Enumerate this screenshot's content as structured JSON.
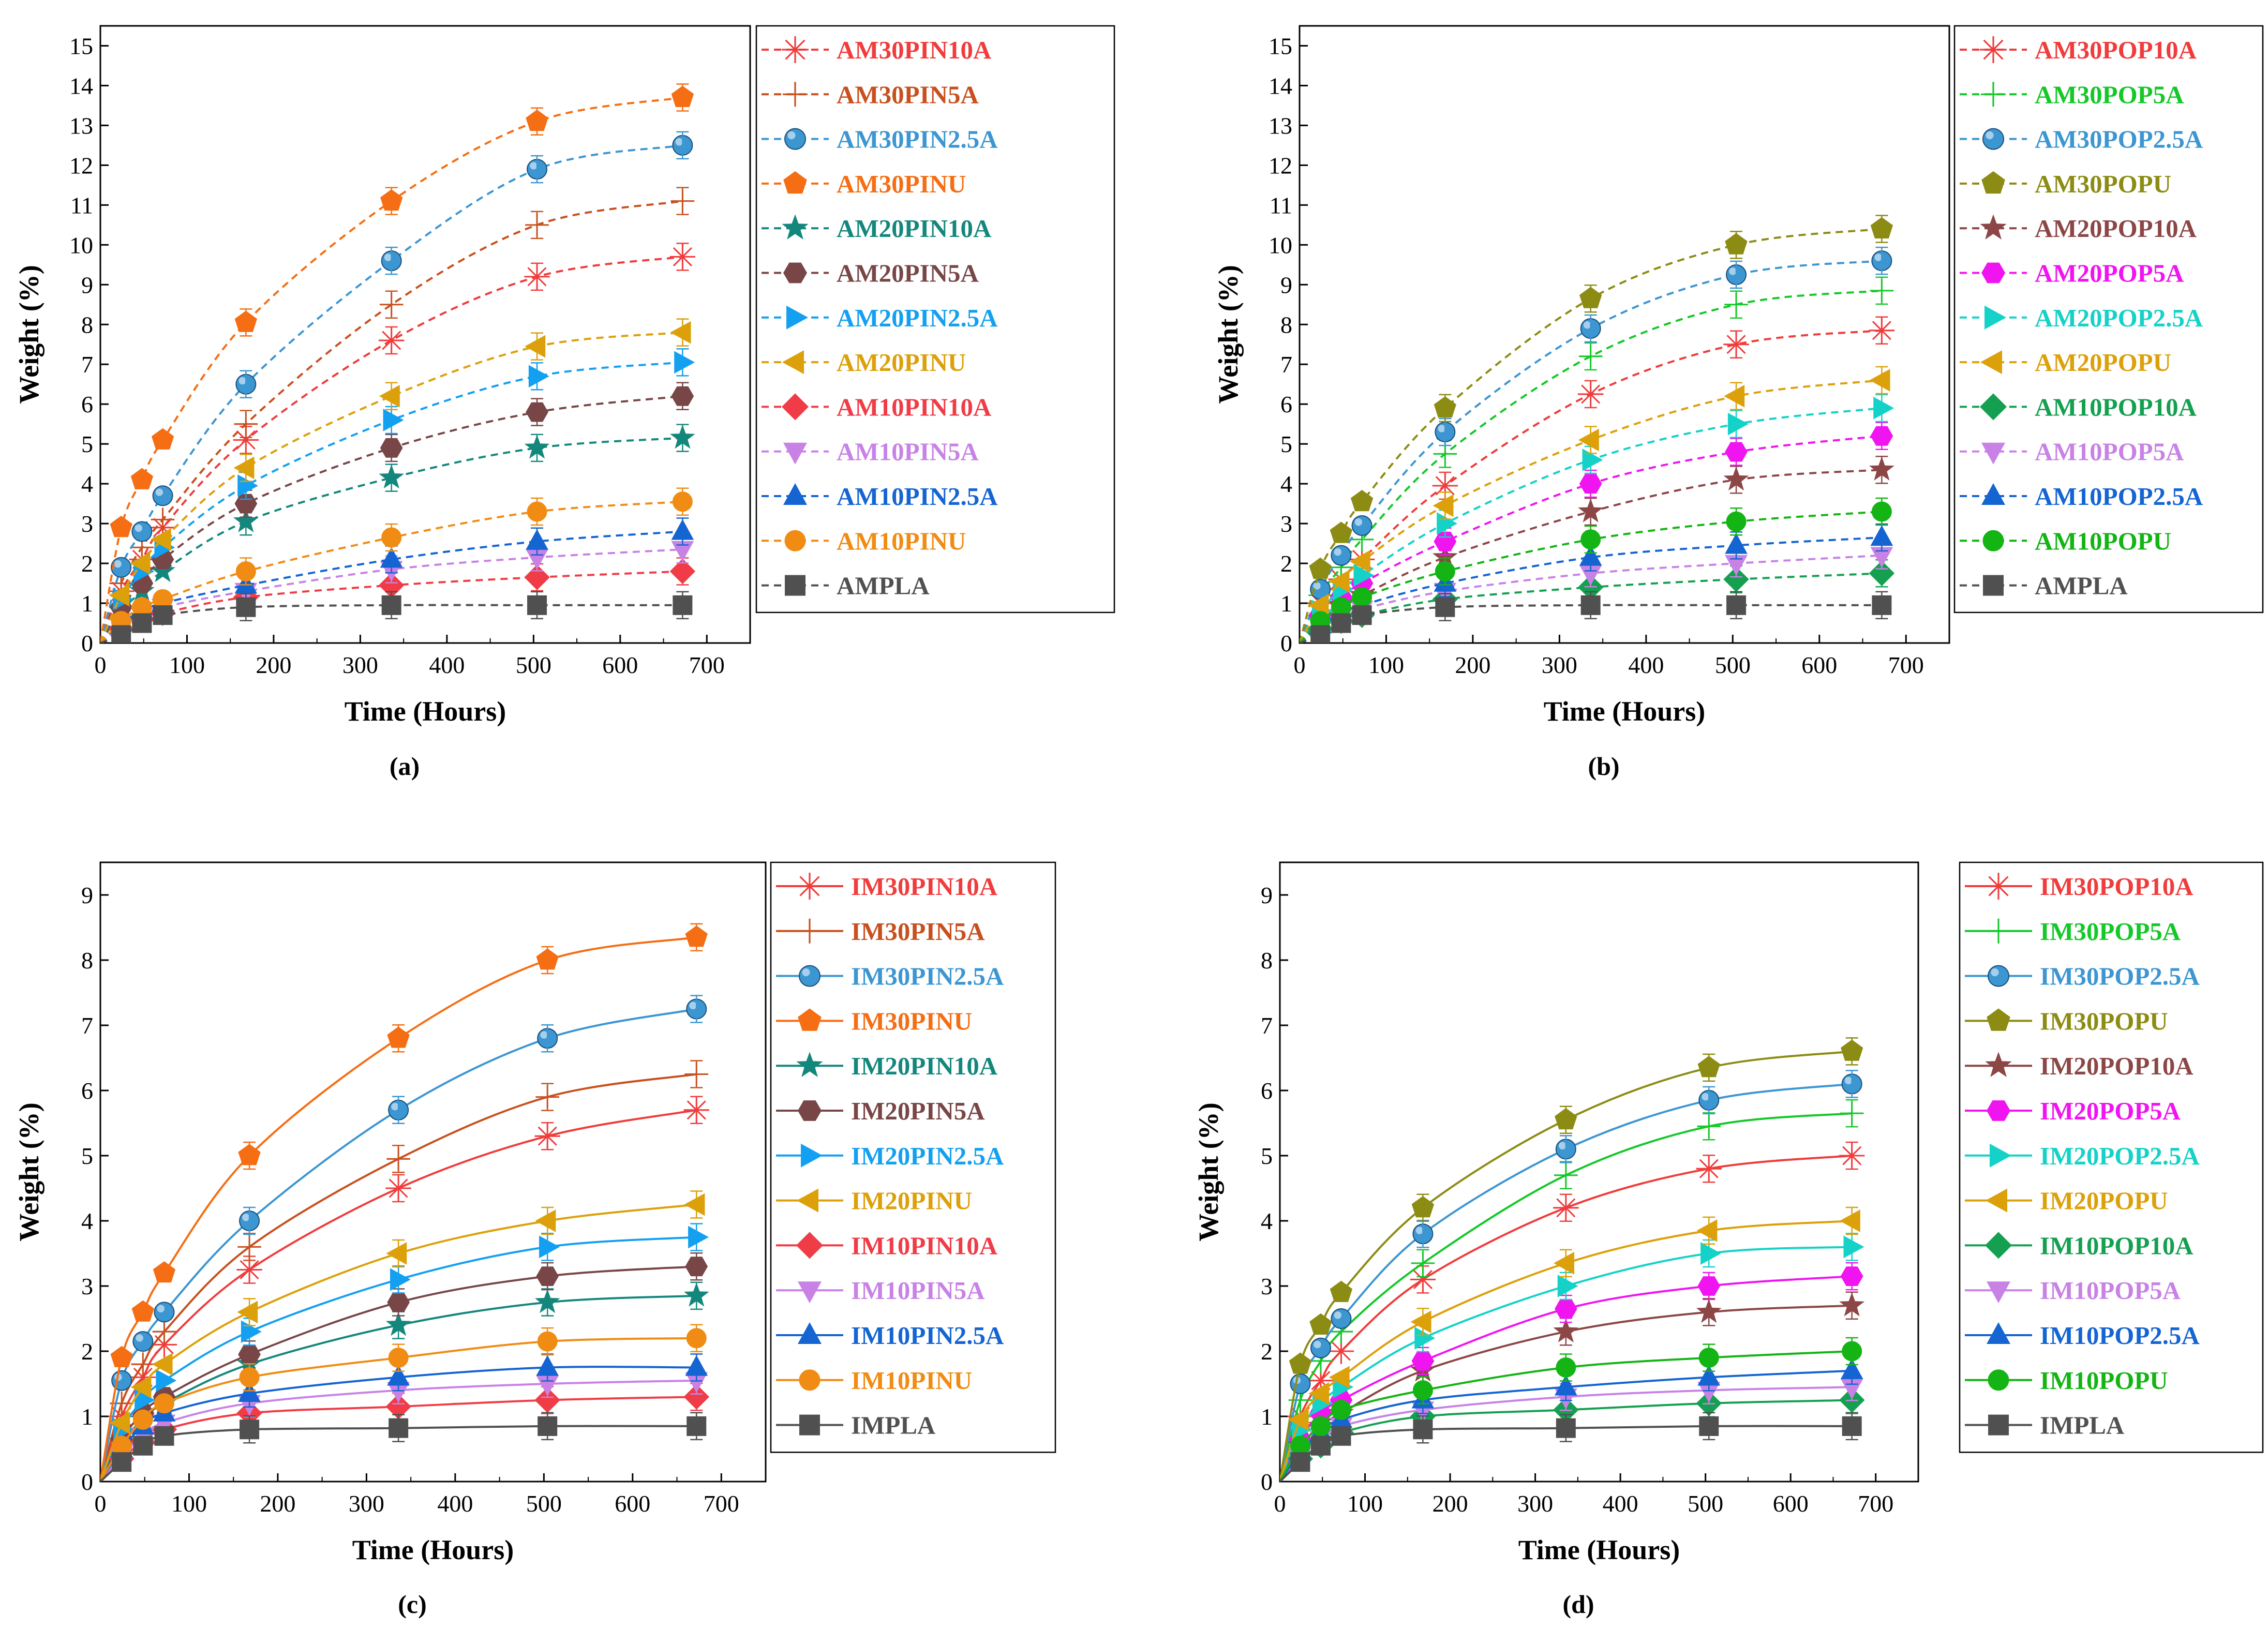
{
  "chart_data": [
    {
      "type": "line",
      "panel_label": "(a)",
      "xlabel": "Time (Hours)",
      "ylabel": "Weight (%)",
      "xlim": [
        0,
        750
      ],
      "ylim": [
        0,
        15.5
      ],
      "x_ticks": [
        0,
        100,
        200,
        300,
        400,
        500,
        600,
        700
      ],
      "y_ticks": [
        0,
        1,
        2,
        3,
        4,
        5,
        6,
        7,
        8,
        9,
        10,
        11,
        12,
        13,
        14,
        15
      ],
      "line_style": "dashed",
      "x": [
        0,
        24,
        48,
        72,
        168,
        336,
        504,
        672
      ],
      "series": [
        {
          "name": "AM30PIN10A",
          "color": "#f03c3c",
          "marker": "asterisk",
          "values": [
            0,
            1.3,
            2.1,
            2.9,
            5.1,
            7.6,
            9.2,
            9.7
          ]
        },
        {
          "name": "AM30PIN5A",
          "color": "#c8501e",
          "marker": "plus",
          "values": [
            0,
            1.5,
            2.4,
            3.1,
            5.5,
            8.5,
            10.5,
            11.1
          ]
        },
        {
          "name": "AM30PIN2.5A",
          "color": "#3c96d2",
          "marker": "sphere",
          "values": [
            0,
            1.9,
            2.8,
            3.7,
            6.5,
            9.6,
            11.9,
            12.5
          ]
        },
        {
          "name": "AM30PINU",
          "color": "#f56e14",
          "marker": "pentagon",
          "values": [
            0,
            2.9,
            4.1,
            5.1,
            8.05,
            11.1,
            13.1,
            13.7
          ]
        },
        {
          "name": "AM20PIN10A",
          "color": "#14877d",
          "marker": "star",
          "values": [
            0,
            0.8,
            1.3,
            1.8,
            3.05,
            4.15,
            4.9,
            5.15
          ]
        },
        {
          "name": "AM20PIN5A",
          "color": "#784646",
          "marker": "hexagon",
          "values": [
            0,
            0.9,
            1.5,
            2.1,
            3.5,
            4.9,
            5.8,
            6.2
          ]
        },
        {
          "name": "AM20PIN2.5A",
          "color": "#14a0f0",
          "marker": "triangle-right",
          "values": [
            0,
            1.1,
            1.8,
            2.4,
            3.95,
            5.6,
            6.7,
            7.05
          ]
        },
        {
          "name": "AM20PINU",
          "color": "#dca00a",
          "marker": "triangle-left",
          "values": [
            0,
            1.2,
            2.0,
            2.6,
            4.4,
            6.2,
            7.45,
            7.8
          ]
        },
        {
          "name": "AM10PIN10A",
          "color": "#f03c46",
          "marker": "diamond",
          "values": [
            0,
            0.35,
            0.6,
            0.75,
            1.15,
            1.45,
            1.65,
            1.8
          ]
        },
        {
          "name": "AM10PIN5A",
          "color": "#c882e6",
          "marker": "triangle-down",
          "values": [
            0,
            0.4,
            0.7,
            0.9,
            1.3,
            1.85,
            2.15,
            2.35
          ]
        },
        {
          "name": "AM10PIN2.5A",
          "color": "#1464d2",
          "marker": "triangle-up",
          "values": [
            0,
            0.5,
            0.8,
            1.0,
            1.45,
            2.1,
            2.55,
            2.8
          ]
        },
        {
          "name": "AM10PINU",
          "color": "#f08c14",
          "marker": "circle",
          "values": [
            0,
            0.55,
            0.9,
            1.1,
            1.8,
            2.65,
            3.3,
            3.55
          ]
        },
        {
          "name": "AMPLA",
          "color": "#505050",
          "marker": "square",
          "values": [
            0,
            0.2,
            0.5,
            0.7,
            0.9,
            0.95,
            0.95,
            0.95
          ]
        }
      ]
    },
    {
      "type": "line",
      "panel_label": "(b)",
      "xlabel": "Time (Hours)",
      "ylabel": "Weight (%)",
      "xlim": [
        0,
        750
      ],
      "ylim": [
        0,
        15.5
      ],
      "x_ticks": [
        0,
        100,
        200,
        300,
        400,
        500,
        600,
        700
      ],
      "y_ticks": [
        0,
        1,
        2,
        3,
        4,
        5,
        6,
        7,
        8,
        9,
        10,
        11,
        12,
        13,
        14,
        15
      ],
      "line_style": "dashed",
      "x": [
        0,
        24,
        48,
        72,
        168,
        336,
        504,
        672
      ],
      "series": [
        {
          "name": "AM30POP10A",
          "color": "#f03c3c",
          "marker": "asterisk",
          "values": [
            0,
            1.0,
            1.6,
            2.1,
            3.95,
            6.25,
            7.5,
            7.85
          ]
        },
        {
          "name": "AM30POP5A",
          "color": "#14c828",
          "marker": "plus",
          "values": [
            0,
            1.2,
            1.9,
            2.6,
            4.75,
            7.2,
            8.5,
            8.85
          ]
        },
        {
          "name": "AM30POP2.5A",
          "color": "#3c96d2",
          "marker": "sphere",
          "values": [
            0,
            1.35,
            2.2,
            2.95,
            5.3,
            7.9,
            9.25,
            9.6
          ]
        },
        {
          "name": "AM30POPU",
          "color": "#8c8c14",
          "marker": "pentagon",
          "values": [
            0,
            1.85,
            2.75,
            3.55,
            5.9,
            8.65,
            10.0,
            10.4
          ]
        },
        {
          "name": "AM20POP10A",
          "color": "#8c4646",
          "marker": "star",
          "values": [
            0,
            0.6,
            0.95,
            1.2,
            2.15,
            3.3,
            4.1,
            4.35
          ]
        },
        {
          "name": "AM20POP5A",
          "color": "#f014f0",
          "marker": "hexagon",
          "values": [
            0,
            0.7,
            1.15,
            1.5,
            2.55,
            4.0,
            4.8,
            5.2
          ]
        },
        {
          "name": "AM20POP2.5A",
          "color": "#14d2c8",
          "marker": "triangle-right",
          "values": [
            0,
            0.8,
            1.35,
            1.7,
            3.0,
            4.6,
            5.5,
            5.9
          ]
        },
        {
          "name": "AM20POPU",
          "color": "#dca00a",
          "marker": "triangle-left",
          "values": [
            0,
            0.95,
            1.55,
            2.05,
            3.45,
            5.1,
            6.2,
            6.6
          ]
        },
        {
          "name": "AM10POP10A",
          "color": "#14a050",
          "marker": "diamond",
          "values": [
            0,
            0.35,
            0.55,
            0.7,
            1.1,
            1.4,
            1.6,
            1.75
          ]
        },
        {
          "name": "AM10POP5A",
          "color": "#c882e6",
          "marker": "triangle-down",
          "values": [
            0,
            0.4,
            0.65,
            0.85,
            1.3,
            1.75,
            2.0,
            2.2
          ]
        },
        {
          "name": "AM10POP2.5A",
          "color": "#1464d2",
          "marker": "triangle-up",
          "values": [
            0,
            0.45,
            0.75,
            0.95,
            1.5,
            2.15,
            2.45,
            2.65
          ]
        },
        {
          "name": "AM10POPU",
          "color": "#14b414",
          "marker": "circle",
          "values": [
            0,
            0.55,
            0.9,
            1.15,
            1.8,
            2.6,
            3.05,
            3.3
          ]
        },
        {
          "name": "AMPLA",
          "color": "#505050",
          "marker": "square",
          "values": [
            0,
            0.2,
            0.5,
            0.7,
            0.9,
            0.95,
            0.95,
            0.95
          ]
        }
      ]
    },
    {
      "type": "line",
      "panel_label": "(c)",
      "xlabel": "Time (Hours)",
      "ylabel": "Weight (%)",
      "xlim": [
        0,
        750
      ],
      "ylim": [
        0,
        9.5
      ],
      "x_ticks": [
        0,
        100,
        200,
        300,
        400,
        500,
        600,
        700
      ],
      "y_ticks": [
        0,
        1,
        2,
        3,
        4,
        5,
        6,
        7,
        8,
        9
      ],
      "line_style": "solid",
      "x": [
        0,
        24,
        48,
        72,
        168,
        336,
        504,
        672
      ],
      "series": [
        {
          "name": "IM30PIN10A",
          "color": "#f03c3c",
          "marker": "asterisk",
          "values": [
            0,
            1.0,
            1.6,
            2.1,
            3.25,
            4.5,
            5.3,
            5.7
          ]
        },
        {
          "name": "IM30PIN5A",
          "color": "#c8501e",
          "marker": "plus",
          "values": [
            0,
            1.2,
            1.8,
            2.3,
            3.6,
            4.95,
            5.9,
            6.25
          ]
        },
        {
          "name": "IM30PIN2.5A",
          "color": "#3c96d2",
          "marker": "sphere",
          "values": [
            0,
            1.55,
            2.15,
            2.6,
            4.0,
            5.7,
            6.8,
            7.25
          ]
        },
        {
          "name": "IM30PINU",
          "color": "#f56e14",
          "marker": "pentagon",
          "values": [
            0,
            1.9,
            2.6,
            3.2,
            5.0,
            6.8,
            8.0,
            8.35
          ]
        },
        {
          "name": "IM20PIN10A",
          "color": "#14877d",
          "marker": "star",
          "values": [
            0,
            0.6,
            0.95,
            1.2,
            1.8,
            2.4,
            2.75,
            2.85
          ]
        },
        {
          "name": "IM20PIN5A",
          "color": "#784646",
          "marker": "hexagon",
          "values": [
            0,
            0.65,
            1.05,
            1.3,
            1.95,
            2.75,
            3.15,
            3.3
          ]
        },
        {
          "name": "IM20PIN2.5A",
          "color": "#14a0f0",
          "marker": "triangle-right",
          "values": [
            0,
            0.8,
            1.25,
            1.55,
            2.3,
            3.1,
            3.6,
            3.75
          ]
        },
        {
          "name": "IM20PINU",
          "color": "#dca00a",
          "marker": "triangle-left",
          "values": [
            0,
            0.9,
            1.45,
            1.8,
            2.6,
            3.5,
            4.0,
            4.25
          ]
        },
        {
          "name": "IM10PIN10A",
          "color": "#f03c46",
          "marker": "diamond",
          "values": [
            0,
            0.35,
            0.6,
            0.8,
            1.05,
            1.15,
            1.25,
            1.3
          ]
        },
        {
          "name": "IM10PIN5A",
          "color": "#c882e6",
          "marker": "triangle-down",
          "values": [
            0,
            0.4,
            0.7,
            0.9,
            1.2,
            1.4,
            1.5,
            1.55
          ]
        },
        {
          "name": "IM10PIN2.5A",
          "color": "#1464d2",
          "marker": "triangle-up",
          "values": [
            0,
            0.5,
            0.85,
            1.05,
            1.35,
            1.6,
            1.75,
            1.75
          ]
        },
        {
          "name": "IM10PINU",
          "color": "#f08c14",
          "marker": "circle",
          "values": [
            0,
            0.55,
            0.95,
            1.2,
            1.6,
            1.9,
            2.15,
            2.2
          ]
        },
        {
          "name": "IMPLA",
          "color": "#505050",
          "marker": "square",
          "values": [
            0,
            0.3,
            0.55,
            0.7,
            0.8,
            0.82,
            0.85,
            0.85
          ]
        }
      ]
    },
    {
      "type": "line",
      "panel_label": "(d)",
      "xlabel": "Time (Hours)",
      "ylabel": "Weight (%)",
      "xlim": [
        0,
        750
      ],
      "ylim": [
        0,
        9.5
      ],
      "x_ticks": [
        0,
        100,
        200,
        300,
        400,
        500,
        600,
        700
      ],
      "y_ticks": [
        0,
        1,
        2,
        3,
        4,
        5,
        6,
        7,
        8,
        9
      ],
      "line_style": "solid",
      "x": [
        0,
        24,
        48,
        72,
        168,
        336,
        504,
        672
      ],
      "series": [
        {
          "name": "IM30POP10A",
          "color": "#f03c3c",
          "marker": "asterisk",
          "values": [
            0,
            1.0,
            1.55,
            2.0,
            3.1,
            4.2,
            4.8,
            5.0
          ]
        },
        {
          "name": "IM30POP5A",
          "color": "#14c828",
          "marker": "plus",
          "values": [
            0,
            1.25,
            1.85,
            2.3,
            3.35,
            4.7,
            5.45,
            5.65
          ]
        },
        {
          "name": "IM30POP2.5A",
          "color": "#3c96d2",
          "marker": "sphere",
          "values": [
            0,
            1.5,
            2.05,
            2.5,
            3.8,
            5.1,
            5.85,
            6.1
          ]
        },
        {
          "name": "IM30POPU",
          "color": "#8c8c14",
          "marker": "pentagon",
          "values": [
            0,
            1.8,
            2.4,
            2.9,
            4.2,
            5.55,
            6.35,
            6.6
          ]
        },
        {
          "name": "IM20POP10A",
          "color": "#8c4646",
          "marker": "star",
          "values": [
            0,
            0.55,
            0.85,
            1.05,
            1.7,
            2.3,
            2.6,
            2.7
          ]
        },
        {
          "name": "IM20POP5A",
          "color": "#f014f0",
          "marker": "hexagon",
          "values": [
            0,
            0.65,
            1.05,
            1.25,
            1.85,
            2.65,
            3.0,
            3.15
          ]
        },
        {
          "name": "IM20POP2.5A",
          "color": "#14d2c8",
          "marker": "triangle-right",
          "values": [
            0,
            0.8,
            1.2,
            1.45,
            2.2,
            3.0,
            3.5,
            3.6
          ]
        },
        {
          "name": "IM20POPU",
          "color": "#dca00a",
          "marker": "triangle-left",
          "values": [
            0,
            0.95,
            1.35,
            1.6,
            2.45,
            3.35,
            3.85,
            4.0
          ]
        },
        {
          "name": "IM10POP10A",
          "color": "#14a050",
          "marker": "diamond",
          "values": [
            0,
            0.35,
            0.55,
            0.75,
            1.0,
            1.1,
            1.2,
            1.25
          ]
        },
        {
          "name": "IM10POP5A",
          "color": "#c882e6",
          "marker": "triangle-down",
          "values": [
            0,
            0.4,
            0.65,
            0.85,
            1.1,
            1.3,
            1.4,
            1.45
          ]
        },
        {
          "name": "IM10POP2.5A",
          "color": "#1464d2",
          "marker": "triangle-up",
          "values": [
            0,
            0.45,
            0.75,
            0.95,
            1.25,
            1.45,
            1.6,
            1.7
          ]
        },
        {
          "name": "IM10POPU",
          "color": "#14b414",
          "marker": "circle",
          "values": [
            0,
            0.55,
            0.85,
            1.1,
            1.4,
            1.75,
            1.9,
            2.0
          ]
        },
        {
          "name": "IMPLA",
          "color": "#505050",
          "marker": "square",
          "values": [
            0,
            0.3,
            0.55,
            0.7,
            0.8,
            0.82,
            0.85,
            0.85
          ]
        }
      ]
    }
  ]
}
